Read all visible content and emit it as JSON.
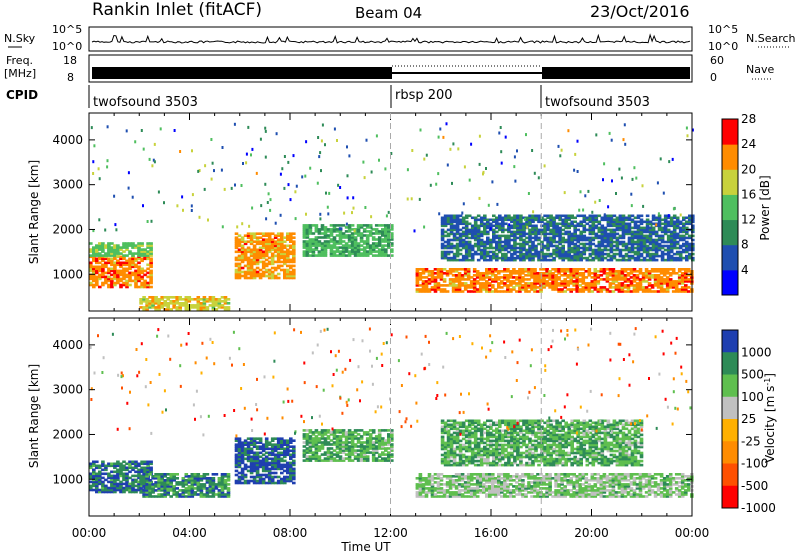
{
  "header": {
    "station": "Rankin Inlet (fitACF)",
    "beam": "Beam 04",
    "date": "23/Oct/2016"
  },
  "chart_data": [
    {
      "type": "line",
      "name": "noise-panel",
      "left_label": "N.Sky",
      "left_ticks": [
        "10^5",
        "10^0"
      ],
      "right_label": "N.Search",
      "right_ticks": [
        "10^5",
        "10^0"
      ],
      "note": "Sky noise trace around 10^1.5 with occasional spikes across 00:00-24:00 UT"
    },
    {
      "type": "line",
      "name": "freq-nave-panel",
      "left_label_1": "Freq.",
      "left_label_2": "[MHz]",
      "left_ticks": [
        "18",
        "8"
      ],
      "right_label": "Nave",
      "right_ticks": [
        "60",
        "0"
      ],
      "cpid_label": "CPID",
      "cpid_segments": [
        {
          "label": "twofsound 3503",
          "start_hour": 0,
          "end_hour": 12
        },
        {
          "label": "rbsp 200",
          "start_hour": 12,
          "end_hour": 18
        },
        {
          "label": "twofsound 3503",
          "start_hour": 18,
          "end_hour": 24
        }
      ]
    },
    {
      "type": "heatmap",
      "name": "power-panel",
      "ylabel": "Slant Range [km]",
      "yticks": [
        1000,
        2000,
        3000,
        4000
      ],
      "ylim": [
        180,
        4600
      ],
      "colorbar_label": "Power [dB]",
      "colorbar_ticks": [
        4,
        8,
        12,
        16,
        20,
        24,
        28
      ],
      "colorbar_colors": [
        "#0000ff",
        "#1f4fb0",
        "#2e8b57",
        "#4fbf5f",
        "#c8d23c",
        "#ff8c00",
        "#ff0000"
      ],
      "regions": [
        {
          "t0": 0.0,
          "t1": 2.5,
          "r0": 700,
          "r1": 1400,
          "level": 26
        },
        {
          "t0": 0.0,
          "t1": 2.5,
          "r0": 1400,
          "r1": 1700,
          "level": 18
        },
        {
          "t0": 2.0,
          "t1": 5.5,
          "r0": 200,
          "r1": 500,
          "level": 22
        },
        {
          "t0": 5.8,
          "t1": 8.2,
          "r0": 900,
          "r1": 1900,
          "level": 25
        },
        {
          "t0": 8.5,
          "t1": 12.0,
          "r0": 1400,
          "r1": 2100,
          "level": 16
        },
        {
          "t0": 13.0,
          "t1": 24.0,
          "r0": 600,
          "r1": 1100,
          "level": 26
        },
        {
          "t0": 14.0,
          "t1": 24.0,
          "r0": 1300,
          "r1": 2300,
          "level": 10
        }
      ]
    },
    {
      "type": "heatmap",
      "name": "velocity-panel",
      "ylabel": "Slant Range [km]",
      "yticks": [
        1000,
        2000,
        3000,
        4000
      ],
      "ylim": [
        180,
        4600
      ],
      "xlabel": "Time UT",
      "xticks": [
        "00:00",
        "04:00",
        "08:00",
        "12:00",
        "16:00",
        "20:00",
        "00:00"
      ],
      "colorbar_label": "Velocity [m s",
      "colorbar_label_sup": "-1",
      "colorbar_label_end": "]",
      "colorbar_ticks": [
        "1000",
        "500",
        "100",
        "25",
        "-25",
        "-100",
        "-500",
        "-1000"
      ],
      "colorbar_colors": [
        "#1f3fb0",
        "#2e8b57",
        "#5fbf4f",
        "#c0c0c0",
        "#ffb000",
        "#ff8c00",
        "#ff5000",
        "#ff0000"
      ],
      "regions": [
        {
          "t0": 0.0,
          "t1": 2.5,
          "r0": 700,
          "r1": 1400,
          "level": 2
        },
        {
          "t0": 2.0,
          "t1": 5.5,
          "r0": 600,
          "r1": 1100,
          "level": 3
        },
        {
          "t0": 5.8,
          "t1": 8.2,
          "r0": 900,
          "r1": 1900,
          "level": 1
        },
        {
          "t0": 8.5,
          "t1": 12.0,
          "r0": 1400,
          "r1": 2100,
          "level": 5
        },
        {
          "t0": 13.0,
          "t1": 24.0,
          "r0": 600,
          "r1": 1100,
          "level": 7
        },
        {
          "t0": 14.0,
          "t1": 22.0,
          "r0": 1300,
          "r1": 2300,
          "level": 5
        }
      ]
    }
  ]
}
